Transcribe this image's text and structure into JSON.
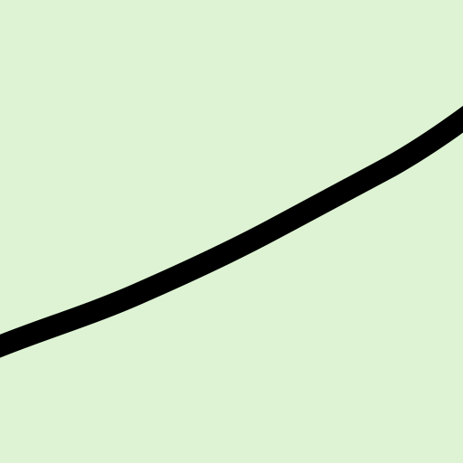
{
  "colors": {
    "background": "#ddf3d3",
    "stroke": "#000000"
  }
}
